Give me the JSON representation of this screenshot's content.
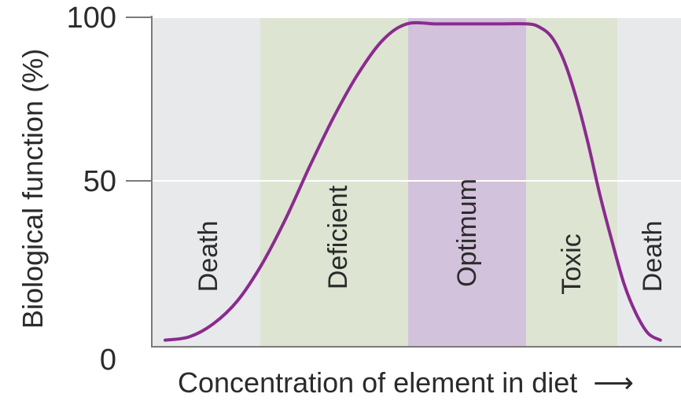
{
  "chart_data": {
    "type": "line",
    "title": "",
    "xlabel": "Concentration of element in diet",
    "xlabel_arrow": "⟶",
    "ylabel": "Biological function (%)",
    "ylim": [
      0,
      100
    ],
    "yticks": [
      {
        "value": 100,
        "label": "100"
      },
      {
        "value": 50,
        "label": "50"
      },
      {
        "value": 0,
        "label": "0"
      }
    ],
    "grid": true,
    "regions": [
      {
        "name": "death-left",
        "label": "Death",
        "color": "#e8e9eb"
      },
      {
        "name": "deficient",
        "label": "Deficient",
        "color": "#dde4d2"
      },
      {
        "name": "optimum",
        "label": "Optimum",
        "color": "#d3c2dc"
      },
      {
        "name": "toxic",
        "label": "Toxic",
        "color": "#dde4d2"
      },
      {
        "name": "death-right",
        "label": "Death",
        "color": "#e8e9eb"
      }
    ],
    "series": [
      {
        "color": "#8a2b8f",
        "points": [
          [
            0,
            2
          ],
          [
            8,
            3
          ],
          [
            16,
            7
          ],
          [
            24,
            14
          ],
          [
            32,
            25
          ],
          [
            40,
            39
          ],
          [
            48,
            55
          ],
          [
            56,
            70
          ],
          [
            64,
            83
          ],
          [
            72,
            93
          ],
          [
            80,
            98
          ],
          [
            90,
            98
          ],
          [
            100,
            98
          ],
          [
            110,
            98
          ],
          [
            120,
            98
          ],
          [
            124,
            97
          ],
          [
            128,
            94
          ],
          [
            132,
            87
          ],
          [
            136,
            76
          ],
          [
            140,
            62
          ],
          [
            144,
            46
          ],
          [
            148,
            32
          ],
          [
            152,
            19
          ],
          [
            156,
            10
          ],
          [
            160,
            4
          ],
          [
            164,
            2
          ]
        ]
      }
    ]
  }
}
